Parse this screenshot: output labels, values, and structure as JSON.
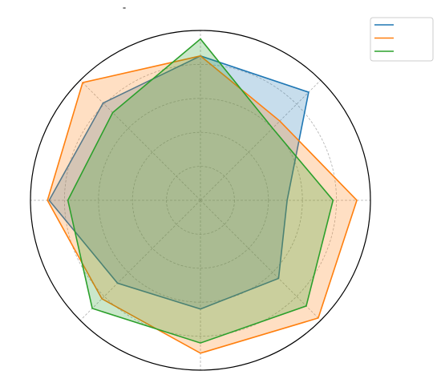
{
  "chart_data": {
    "type": "radar",
    "title": "-",
    "categories": [
      null,
      null,
      null,
      null,
      null,
      null,
      null,
      null
    ],
    "series": [
      {
        "color": "#1f77b4",
        "values": [
          8.5,
          9.0,
          5.1,
          6.5,
          6.4,
          6.9,
          8.9,
          8.1
        ]
      },
      {
        "color": "#ff7f0e",
        "values": [
          8.5,
          6.6,
          9.2,
          9.8,
          9.0,
          8.2,
          9.0,
          9.8
        ]
      },
      {
        "color": "#2ca02c",
        "values": [
          9.5,
          6.0,
          7.8,
          8.8,
          8.4,
          9.0,
          7.8,
          7.3
        ]
      }
    ],
    "ylim": [
      0,
      10
    ],
    "yticks": [
      2,
      4,
      6,
      8,
      10
    ],
    "grid": true,
    "legend": "upper right"
  }
}
